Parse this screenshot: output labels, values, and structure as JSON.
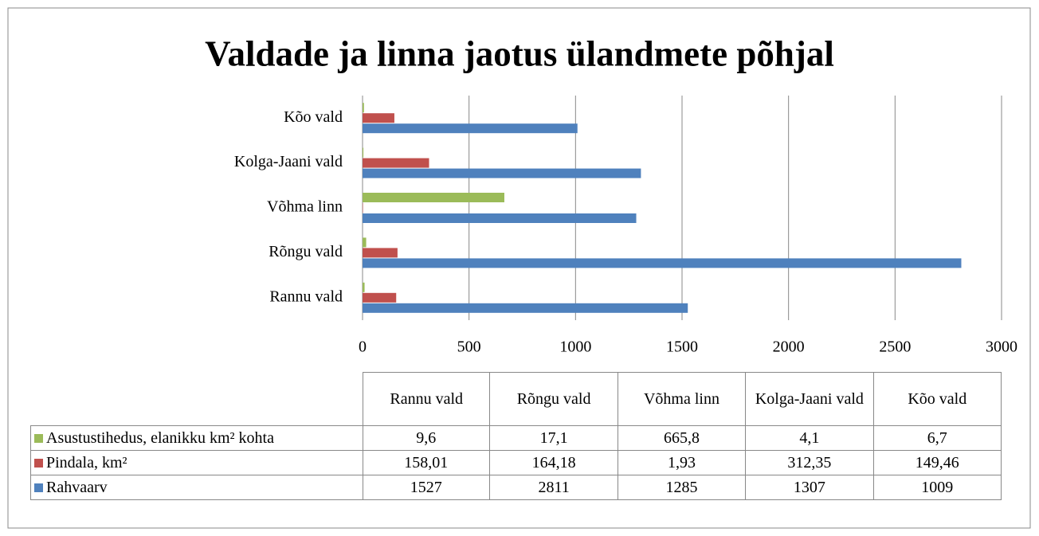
{
  "chart_data": {
    "type": "hbar",
    "title": "Valdade ja linna jaotus ülandmete põhjal",
    "categories": [
      "Rannu vald",
      "Rõngu vald",
      "Võhma linn",
      "Kolga-Jaani vald",
      "Kõo vald"
    ],
    "series": [
      {
        "name": "Asustustihedus, elanikku km² kohta",
        "color": "#9bbb59",
        "values": [
          9.6,
          17.1,
          665.8,
          4.1,
          6.7
        ],
        "value_labels": [
          "9,6",
          "17,1",
          "665,8",
          "4,1",
          "6,7"
        ]
      },
      {
        "name": "Pindala, km²",
        "color": "#c0504d",
        "values": [
          158.01,
          164.18,
          1.93,
          312.35,
          149.46
        ],
        "value_labels": [
          "158,01",
          "164,18",
          "1,93",
          "312,35",
          "149,46"
        ]
      },
      {
        "name": "Rahvaarv",
        "color": "#4f81bd",
        "values": [
          1527,
          2811,
          1285,
          1307,
          1009
        ]
      }
    ],
    "xlim": [
      0,
      3000
    ],
    "xticks": [
      0,
      500,
      1000,
      1500,
      2000,
      2500,
      3000
    ],
    "grid": true
  }
}
